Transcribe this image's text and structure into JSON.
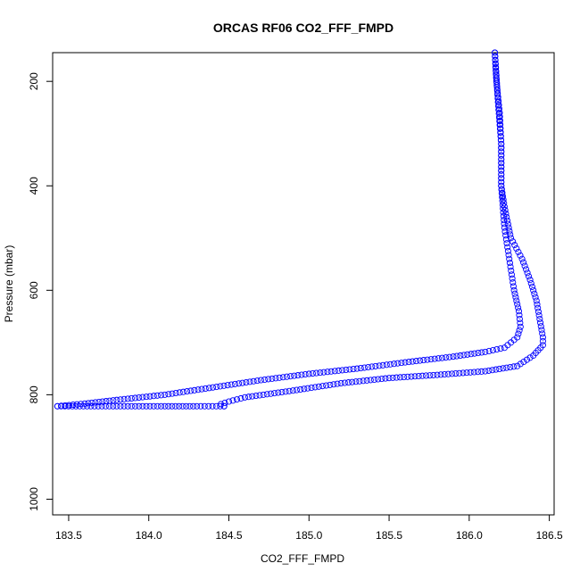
{
  "chart_data": {
    "type": "scatter",
    "title": "ORCAS RF06 CO2_FFF_FMPD",
    "xlabel": "CO2_FFF_FMPD",
    "ylabel": "Pressure (mbar)",
    "xlim": [
      183.4,
      186.53
    ],
    "ylim": [
      1030,
      145
    ],
    "y_reversed": true,
    "x_ticks": [
      "183.5",
      "184.0",
      "184.5",
      "185.0",
      "185.5",
      "186.0",
      "186.5"
    ],
    "y_ticks": [
      "200",
      "400",
      "600",
      "800",
      "1000"
    ],
    "marker": "open-circle",
    "marker_color": "#0000ff",
    "grid": false,
    "legend": "none",
    "series": [
      {
        "path": [
          [
            186.16,
            145
          ],
          [
            186.17,
            200
          ],
          [
            186.19,
            260
          ],
          [
            186.2,
            320
          ],
          [
            186.2,
            400
          ],
          [
            186.22,
            440
          ],
          [
            186.26,
            500
          ],
          [
            186.33,
            540
          ],
          [
            186.38,
            580
          ],
          [
            186.42,
            620
          ],
          [
            186.46,
            690
          ],
          [
            186.46,
            705
          ],
          [
            186.4,
            725
          ],
          [
            186.3,
            745
          ],
          [
            186.1,
            755
          ],
          [
            185.8,
            762
          ],
          [
            185.5,
            768
          ],
          [
            185.2,
            778
          ],
          [
            184.9,
            792
          ],
          [
            184.6,
            805
          ],
          [
            184.5,
            813
          ],
          [
            184.45,
            818
          ],
          [
            184.47,
            822
          ]
        ]
      },
      {
        "path": [
          [
            186.16,
            145
          ],
          [
            186.18,
            240
          ],
          [
            186.2,
            320
          ],
          [
            186.2,
            400
          ],
          [
            186.22,
            480
          ],
          [
            186.25,
            540
          ],
          [
            186.28,
            600
          ],
          [
            186.31,
            640
          ],
          [
            186.32,
            670
          ],
          [
            186.3,
            690
          ],
          [
            186.22,
            710
          ],
          [
            186.1,
            718
          ],
          [
            185.9,
            727
          ],
          [
            185.6,
            738
          ],
          [
            185.3,
            750
          ],
          [
            185.0,
            760
          ],
          [
            184.7,
            772
          ],
          [
            184.4,
            786
          ],
          [
            184.1,
            800
          ],
          [
            183.8,
            810
          ],
          [
            183.6,
            817
          ],
          [
            183.43,
            822
          ]
        ]
      },
      {
        "path": [
          [
            183.43,
            822
          ],
          [
            183.8,
            822
          ],
          [
            184.1,
            822
          ],
          [
            184.3,
            822
          ],
          [
            184.47,
            822
          ]
        ]
      }
    ]
  }
}
